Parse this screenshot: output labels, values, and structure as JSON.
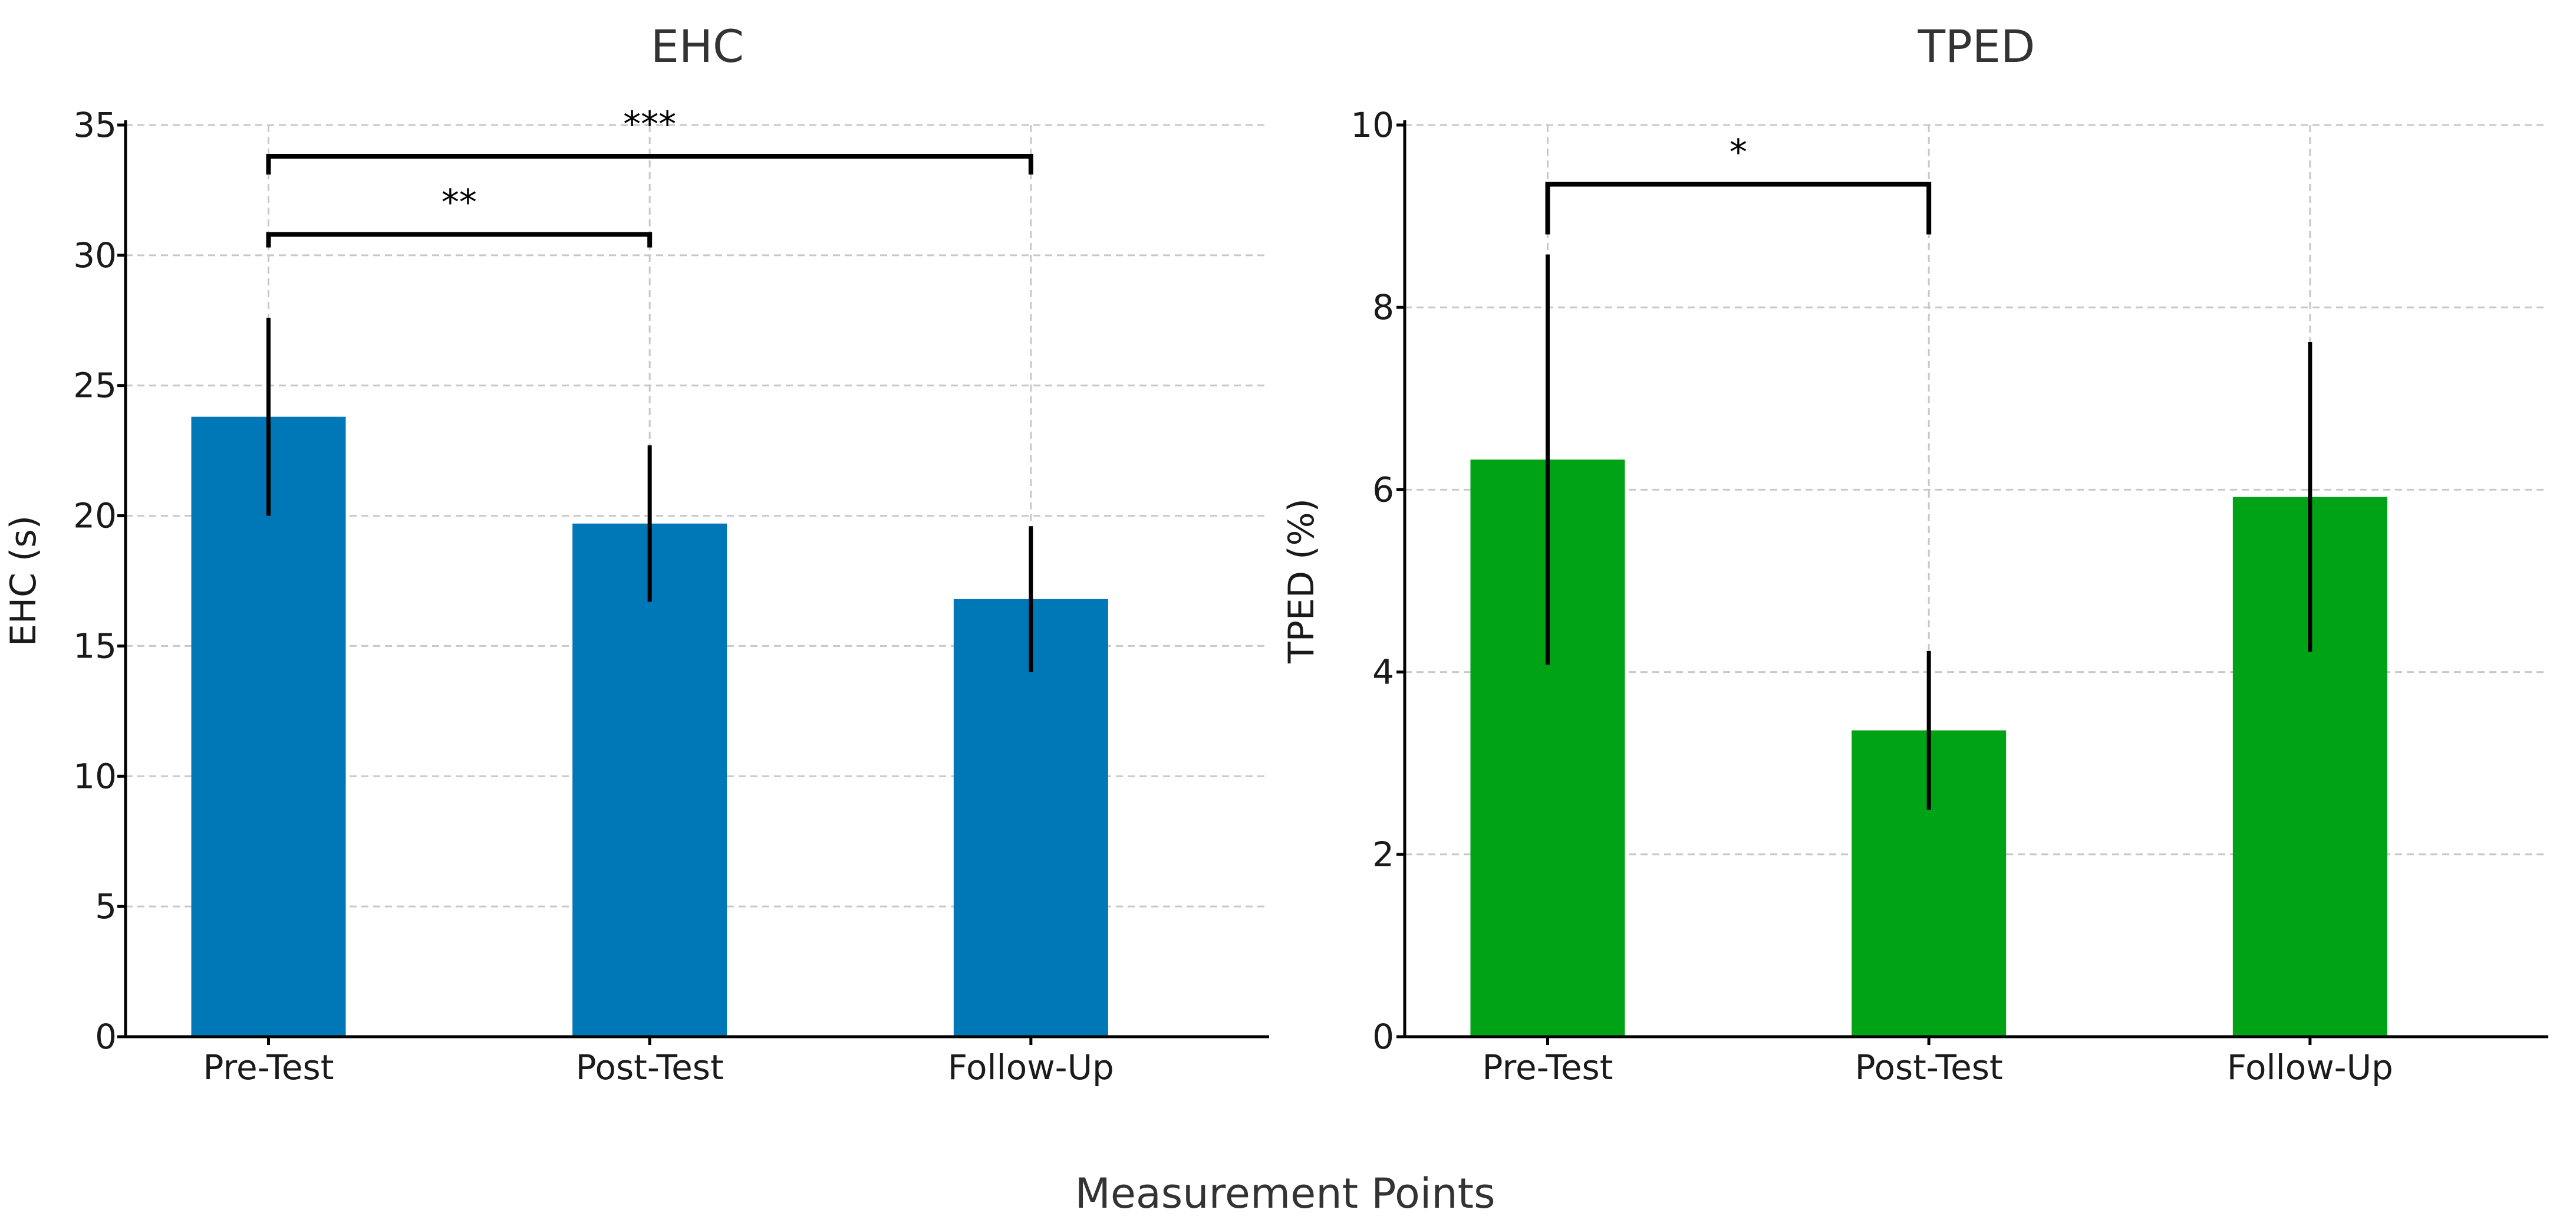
{
  "figure": {
    "xlabel": "Measurement Points"
  },
  "chart_data": [
    {
      "type": "bar",
      "title": "EHC",
      "xlabel": "",
      "ylabel": "EHC (s)",
      "categories": [
        "Pre-Test",
        "Post-Test",
        "Follow-Up"
      ],
      "values": [
        23.8,
        19.7,
        16.8
      ],
      "errors": [
        3.8,
        3.0,
        2.8
      ],
      "ylim": [
        0,
        35
      ],
      "yticks": [
        0,
        5,
        10,
        15,
        20,
        25,
        30,
        35
      ],
      "color": "#0077b6",
      "grid": true,
      "significance": [
        {
          "from": 0,
          "to": 1,
          "y": 30.8,
          "drop": 0.5,
          "label": "**"
        },
        {
          "from": 0,
          "to": 2,
          "y": 33.8,
          "drop": 0.7,
          "label": "***"
        }
      ]
    },
    {
      "type": "bar",
      "title": "TPED",
      "xlabel": "",
      "ylabel": "TPED (%)",
      "categories": [
        "Pre-Test",
        "Post-Test",
        "Follow-Up"
      ],
      "values": [
        6.33,
        3.36,
        5.92
      ],
      "errors": [
        2.25,
        0.87,
        1.7
      ],
      "ylim": [
        0,
        10
      ],
      "yticks": [
        0,
        2,
        4,
        6,
        8,
        10
      ],
      "color": "#00a316",
      "grid": true,
      "significance": [
        {
          "from": 0,
          "to": 1,
          "y": 9.35,
          "drop": 0.55,
          "label": "*"
        }
      ]
    }
  ]
}
